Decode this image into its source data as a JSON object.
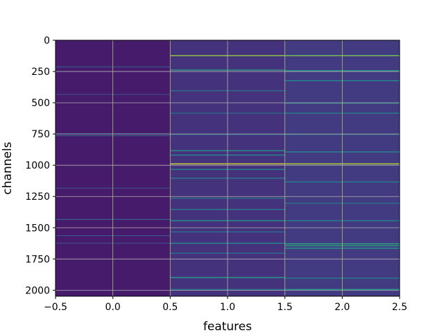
{
  "chart_data": {
    "type": "heatmap",
    "title": "",
    "xlabel": "features",
    "ylabel": "channels",
    "xlim": [
      -0.5,
      2.5
    ],
    "ylim": [
      2048,
      0
    ],
    "y_inverted": true,
    "grid": true,
    "colormap": "viridis",
    "num_columns": 3,
    "num_rows": 2048,
    "x_ticks": [
      -0.5,
      0.0,
      0.5,
      1.0,
      1.5,
      2.0,
      2.5
    ],
    "x_tick_labels": [
      "−0.5",
      "0.0",
      "0.5",
      "1.0",
      "1.5",
      "2.0",
      "2.5"
    ],
    "y_ticks": [
      0,
      250,
      500,
      750,
      1000,
      1250,
      1500,
      1750,
      2000
    ],
    "y_tick_labels": [
      "0",
      "250",
      "500",
      "750",
      "1000",
      "1250",
      "1500",
      "1750",
      "2000"
    ],
    "columns": [
      {
        "feature": 0,
        "base_value": 0.08,
        "notable_rows": [
          {
            "row": 210,
            "value": 0.25
          },
          {
            "row": 430,
            "value": 0.22
          },
          {
            "row": 745,
            "value": 0.35
          },
          {
            "row": 760,
            "value": 0.28
          },
          {
            "row": 1180,
            "value": 0.22
          },
          {
            "row": 1430,
            "value": 0.3
          },
          {
            "row": 1560,
            "value": 0.25
          },
          {
            "row": 1620,
            "value": 0.22
          }
        ]
      },
      {
        "feature": 1,
        "base_value": 0.15,
        "notable_rows": [
          {
            "row": 120,
            "value": 0.85
          },
          {
            "row": 235,
            "value": 0.6
          },
          {
            "row": 400,
            "value": 0.4
          },
          {
            "row": 580,
            "value": 0.35
          },
          {
            "row": 750,
            "value": 0.4
          },
          {
            "row": 880,
            "value": 0.55
          },
          {
            "row": 915,
            "value": 0.5
          },
          {
            "row": 985,
            "value": 0.95
          },
          {
            "row": 1030,
            "value": 0.5
          },
          {
            "row": 1100,
            "value": 0.45
          },
          {
            "row": 1260,
            "value": 0.4
          },
          {
            "row": 1350,
            "value": 0.45
          },
          {
            "row": 1440,
            "value": 0.55
          },
          {
            "row": 1530,
            "value": 0.4
          },
          {
            "row": 1620,
            "value": 0.5
          },
          {
            "row": 1700,
            "value": 0.4
          },
          {
            "row": 1895,
            "value": 0.6
          },
          {
            "row": 1990,
            "value": 0.4
          }
        ]
      },
      {
        "feature": 2,
        "base_value": 0.18,
        "notable_rows": [
          {
            "row": 120,
            "value": 0.8
          },
          {
            "row": 240,
            "value": 0.55
          },
          {
            "row": 320,
            "value": 0.5
          },
          {
            "row": 500,
            "value": 0.45
          },
          {
            "row": 580,
            "value": 0.45
          },
          {
            "row": 750,
            "value": 0.4
          },
          {
            "row": 890,
            "value": 0.5
          },
          {
            "row": 985,
            "value": 0.9
          },
          {
            "row": 1130,
            "value": 0.45
          },
          {
            "row": 1300,
            "value": 0.4
          },
          {
            "row": 1440,
            "value": 0.45
          },
          {
            "row": 1625,
            "value": 0.62
          },
          {
            "row": 1640,
            "value": 0.62
          },
          {
            "row": 1660,
            "value": 0.55
          },
          {
            "row": 1900,
            "value": 0.45
          },
          {
            "row": 1990,
            "value": 0.55
          }
        ]
      }
    ]
  }
}
